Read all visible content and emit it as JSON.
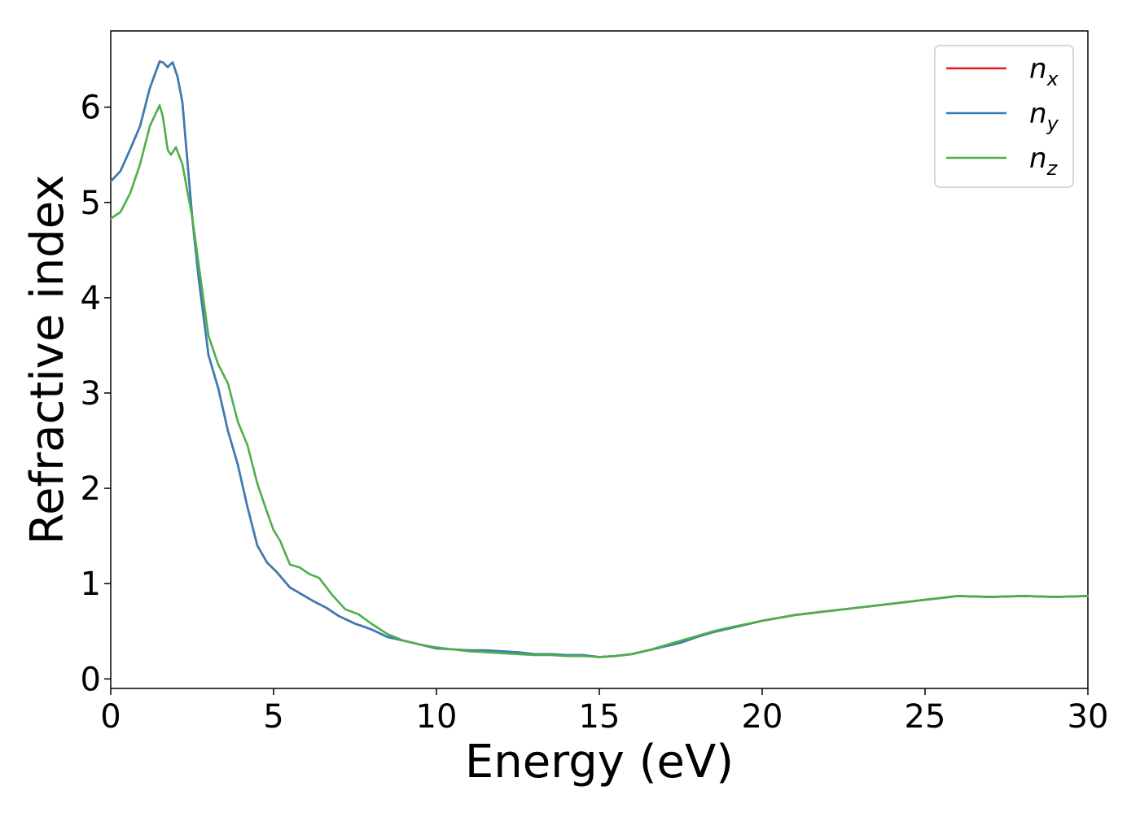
{
  "chart_data": {
    "type": "line",
    "title": "",
    "xlabel": "Energy (eV)",
    "ylabel": "Refractive index",
    "xlim": [
      0,
      30
    ],
    "ylim": [
      -0.1,
      6.8
    ],
    "xticks": [
      0,
      5,
      10,
      15,
      20,
      25,
      30
    ],
    "yticks": [
      0,
      1,
      2,
      3,
      4,
      5,
      6
    ],
    "grid": false,
    "legend_position": "top-right",
    "series": [
      {
        "name": "n_x",
        "legend_base": "n",
        "legend_sub": "x",
        "color": "#e41a1c",
        "x": [
          0,
          0.3,
          0.6,
          0.9,
          1.2,
          1.5,
          1.6,
          1.75,
          1.9,
          2.05,
          2.2,
          2.5,
          2.7,
          3.0,
          3.3,
          3.6,
          3.9,
          4.2,
          4.5,
          4.8,
          5.1,
          5.5,
          5.8,
          6.2,
          6.6,
          7.0,
          7.5,
          8.0,
          8.5,
          9.0,
          9.5,
          10.0,
          10.5,
          11.0,
          11.5,
          12.0,
          12.5,
          13.0,
          13.5,
          14.0,
          14.5,
          15.0,
          15.5,
          16.0,
          16.5,
          17.0,
          17.5,
          18.0,
          18.5,
          19.0,
          20.0,
          21.0,
          22.0,
          23.0,
          24.0,
          25.0,
          25.5,
          26.0,
          27.0,
          28.0,
          29.0,
          30.0
        ],
        "y": [
          5.22,
          5.33,
          5.56,
          5.8,
          6.2,
          6.48,
          6.47,
          6.42,
          6.47,
          6.32,
          6.05,
          4.85,
          4.2,
          3.4,
          3.05,
          2.6,
          2.25,
          1.8,
          1.4,
          1.22,
          1.12,
          0.96,
          0.9,
          0.82,
          0.75,
          0.66,
          0.58,
          0.52,
          0.44,
          0.4,
          0.36,
          0.32,
          0.31,
          0.3,
          0.3,
          0.29,
          0.28,
          0.26,
          0.26,
          0.25,
          0.25,
          0.23,
          0.24,
          0.26,
          0.3,
          0.34,
          0.38,
          0.44,
          0.49,
          0.53,
          0.61,
          0.67,
          0.71,
          0.75,
          0.79,
          0.83,
          0.85,
          0.87,
          0.86,
          0.87,
          0.86,
          0.87
        ]
      },
      {
        "name": "n_y",
        "legend_base": "n",
        "legend_sub": "y",
        "color": "#377eb8",
        "x": [
          0,
          0.3,
          0.6,
          0.9,
          1.2,
          1.5,
          1.6,
          1.75,
          1.9,
          2.05,
          2.2,
          2.5,
          2.7,
          3.0,
          3.3,
          3.6,
          3.9,
          4.2,
          4.5,
          4.8,
          5.1,
          5.5,
          5.8,
          6.2,
          6.6,
          7.0,
          7.5,
          8.0,
          8.5,
          9.0,
          9.5,
          10.0,
          10.5,
          11.0,
          11.5,
          12.0,
          12.5,
          13.0,
          13.5,
          14.0,
          14.5,
          15.0,
          15.5,
          16.0,
          16.5,
          17.0,
          17.5,
          18.0,
          18.5,
          19.0,
          20.0,
          21.0,
          22.0,
          23.0,
          24.0,
          25.0,
          25.5,
          26.0,
          27.0,
          28.0,
          29.0,
          30.0
        ],
        "y": [
          5.22,
          5.33,
          5.56,
          5.8,
          6.2,
          6.48,
          6.47,
          6.42,
          6.47,
          6.32,
          6.05,
          4.85,
          4.2,
          3.4,
          3.05,
          2.6,
          2.25,
          1.8,
          1.4,
          1.22,
          1.12,
          0.96,
          0.9,
          0.82,
          0.75,
          0.66,
          0.58,
          0.52,
          0.44,
          0.4,
          0.36,
          0.32,
          0.31,
          0.3,
          0.3,
          0.29,
          0.28,
          0.26,
          0.26,
          0.25,
          0.25,
          0.23,
          0.24,
          0.26,
          0.3,
          0.34,
          0.38,
          0.44,
          0.49,
          0.53,
          0.61,
          0.67,
          0.71,
          0.75,
          0.79,
          0.83,
          0.85,
          0.87,
          0.86,
          0.87,
          0.86,
          0.87
        ]
      },
      {
        "name": "n_z",
        "legend_base": "n",
        "legend_sub": "z",
        "color": "#4daf4a",
        "x": [
          0,
          0.3,
          0.6,
          0.9,
          1.2,
          1.5,
          1.6,
          1.75,
          1.85,
          2.0,
          2.2,
          2.5,
          2.8,
          3.0,
          3.3,
          3.6,
          3.9,
          4.2,
          4.5,
          4.8,
          5.0,
          5.2,
          5.5,
          5.8,
          6.1,
          6.4,
          6.8,
          7.2,
          7.6,
          8.0,
          8.5,
          9.0,
          9.5,
          10.0,
          10.5,
          11.0,
          11.5,
          12.0,
          12.5,
          13.0,
          13.5,
          14.0,
          14.5,
          15.0,
          15.5,
          16.0,
          16.5,
          17.0,
          17.5,
          18.0,
          18.5,
          19.0,
          20.0,
          21.0,
          22.0,
          23.0,
          24.0,
          25.0,
          25.5,
          26.0,
          27.0,
          28.0,
          29.0,
          30.0
        ],
        "y": [
          4.83,
          4.9,
          5.1,
          5.4,
          5.8,
          6.02,
          5.9,
          5.55,
          5.5,
          5.58,
          5.4,
          4.85,
          4.1,
          3.6,
          3.3,
          3.1,
          2.7,
          2.45,
          2.05,
          1.75,
          1.56,
          1.45,
          1.2,
          1.17,
          1.1,
          1.06,
          0.88,
          0.73,
          0.68,
          0.58,
          0.47,
          0.4,
          0.36,
          0.33,
          0.31,
          0.29,
          0.28,
          0.27,
          0.26,
          0.25,
          0.25,
          0.24,
          0.24,
          0.23,
          0.24,
          0.26,
          0.3,
          0.35,
          0.4,
          0.45,
          0.5,
          0.54,
          0.61,
          0.67,
          0.71,
          0.75,
          0.79,
          0.83,
          0.85,
          0.87,
          0.86,
          0.87,
          0.86,
          0.87
        ]
      }
    ]
  }
}
